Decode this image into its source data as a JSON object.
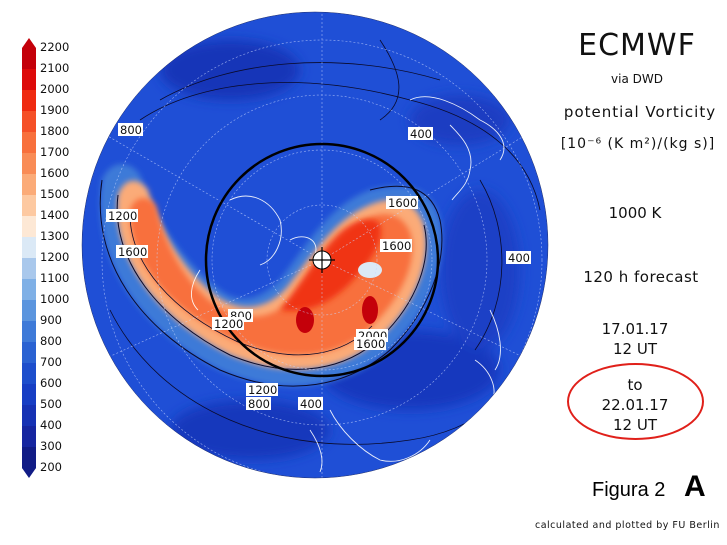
{
  "header": {
    "title": "ECMWF",
    "source": "via DWD",
    "quantity": "potential Vorticity",
    "units": "[10⁻⁶ (K m²)/(kg s)]",
    "level": "1000 K",
    "forecast": "120 h forecast",
    "init_date": "17.01.17",
    "init_time": "12 UT",
    "to_label": "to",
    "valid_date": "22.01.17",
    "valid_time": "12 UT"
  },
  "figure": {
    "label": "Figura 2",
    "panel": "A"
  },
  "credits": "calculated and plotted by FU Berlin",
  "colorbar": {
    "levels": [
      "2200",
      "2100",
      "2000",
      "1900",
      "1800",
      "1700",
      "1600",
      "1500",
      "1400",
      "1300",
      "1200",
      "1100",
      "1000",
      "900",
      "800",
      "700",
      "600",
      "500",
      "400",
      "300",
      "200"
    ],
    "colors": [
      "#c4000a",
      "#dd0a0a",
      "#ef2a10",
      "#f55027",
      "#f8703c",
      "#f98c56",
      "#fbab78",
      "#fdc9a1",
      "#fde8d5",
      "#dbe9f6",
      "#a9c8ec",
      "#7fb0e6",
      "#5b95de",
      "#3e7ad8",
      "#2a62d2",
      "#1d4ecc",
      "#173ec4",
      "#1632b4",
      "#1626a0",
      "#111c86"
    ],
    "ellipse_color": "#e0201a"
  },
  "map_labels": [
    {
      "text": "800"
    },
    {
      "text": "1200"
    },
    {
      "text": "1600"
    },
    {
      "text": "400"
    },
    {
      "text": "1600"
    },
    {
      "text": "1600"
    },
    {
      "text": "400"
    },
    {
      "text": "800"
    },
    {
      "text": "1200"
    },
    {
      "text": "2000"
    },
    {
      "text": "1600"
    },
    {
      "text": "1200"
    },
    {
      "text": "800"
    },
    {
      "text": "400"
    }
  ]
}
